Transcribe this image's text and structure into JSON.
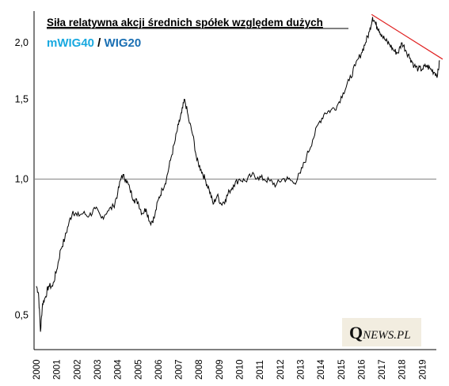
{
  "chart_data": {
    "type": "line",
    "title": "Siła relatywna akcji średnich spółek względem dużych",
    "subtitle": {
      "numerator": "mWIG40",
      "separator": " / ",
      "denominator": "WIG20",
      "numerator_color": "#19a9e0",
      "denominator_color": "#1a6fb3"
    },
    "y_scale": "log",
    "ylim": [
      0.42,
      2.35
    ],
    "y_ticks": [
      {
        "value": 0.5,
        "label": "0,5"
      },
      {
        "value": 1.0,
        "label": "1,0"
      },
      {
        "value": 1.5,
        "label": "1,5"
      },
      {
        "value": 2.0,
        "label": "2,0"
      }
    ],
    "xlim": [
      2000.0,
      2020.0
    ],
    "x_ticks": [
      "2000",
      "2001",
      "2002",
      "2003",
      "2004",
      "2005",
      "2006",
      "2007",
      "2008",
      "2009",
      "2010",
      "2011",
      "2012",
      "2013",
      "2014",
      "2015",
      "2016",
      "2017",
      "2018",
      "2019"
    ],
    "reference_line": {
      "value": 1.0,
      "color": "#808080"
    },
    "trend_line": {
      "x": [
        2016.5,
        2020.0
      ],
      "y": [
        2.31,
        1.84
      ],
      "color": "#e02020"
    },
    "series": [
      {
        "color": "#000000",
        "x": [
          2000.0,
          2000.1,
          2000.2,
          2000.3,
          2000.45,
          2000.6,
          2000.8,
          2001.0,
          2001.2,
          2001.4,
          2001.6,
          2001.8,
          2002.0,
          2002.3,
          2002.6,
          2002.9,
          2003.2,
          2003.5,
          2003.8,
          2004.0,
          2004.2,
          2004.4,
          2004.6,
          2004.8,
          2005.0,
          2005.2,
          2005.4,
          2005.6,
          2005.8,
          2006.0,
          2006.2,
          2006.4,
          2006.6,
          2006.8,
          2007.0,
          2007.15,
          2007.3,
          2007.5,
          2007.7,
          2007.9,
          2008.1,
          2008.3,
          2008.5,
          2008.7,
          2008.9,
          2009.1,
          2009.3,
          2009.5,
          2009.7,
          2010.0,
          2010.3,
          2010.6,
          2010.9,
          2011.2,
          2011.5,
          2011.8,
          2012.1,
          2012.4,
          2012.7,
          2013.0,
          2013.3,
          2013.6,
          2013.9,
          2014.2,
          2014.5,
          2014.8,
          2015.1,
          2015.4,
          2015.7,
          2016.0,
          2016.2,
          2016.4,
          2016.55,
          2016.7,
          2016.85,
          2017.0,
          2017.2,
          2017.4,
          2017.6,
          2017.8,
          2018.0,
          2018.2,
          2018.4,
          2018.6,
          2018.8,
          2019.0,
          2019.2,
          2019.4,
          2019.6,
          2019.75,
          2019.85
        ],
        "y": [
          0.58,
          0.56,
          0.46,
          0.53,
          0.55,
          0.58,
          0.58,
          0.63,
          0.7,
          0.74,
          0.8,
          0.85,
          0.83,
          0.84,
          0.83,
          0.86,
          0.82,
          0.85,
          0.87,
          0.93,
          1.02,
          1.0,
          0.95,
          0.9,
          0.89,
          0.84,
          0.86,
          0.8,
          0.82,
          0.9,
          0.95,
          1.0,
          1.1,
          1.2,
          1.32,
          1.4,
          1.5,
          1.35,
          1.25,
          1.1,
          1.05,
          1.0,
          0.95,
          0.88,
          0.92,
          0.88,
          0.9,
          0.94,
          0.97,
          1.0,
          0.99,
          1.02,
          1.01,
          1.0,
          0.99,
          0.97,
          1.0,
          1.0,
          0.98,
          1.03,
          1.12,
          1.22,
          1.33,
          1.4,
          1.42,
          1.45,
          1.55,
          1.65,
          1.78,
          1.9,
          2.0,
          2.12,
          2.28,
          2.2,
          2.15,
          2.08,
          2.02,
          1.98,
          1.92,
          1.9,
          2.0,
          1.92,
          1.85,
          1.78,
          1.75,
          1.75,
          1.78,
          1.75,
          1.72,
          1.7,
          1.82
        ]
      }
    ]
  },
  "logo": {
    "initial": "Q",
    "rest": "NEWS.PL"
  }
}
